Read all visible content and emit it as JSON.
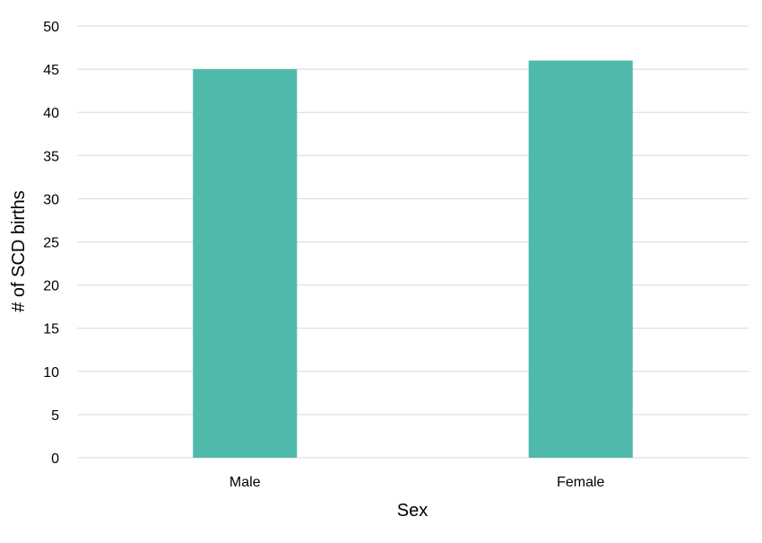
{
  "chart_data": {
    "type": "bar",
    "title": "",
    "xlabel": "Sex",
    "ylabel": "# of SCD births",
    "categories": [
      "Male",
      "Female"
    ],
    "values": [
      45,
      46
    ],
    "ylim": [
      0,
      50
    ],
    "ytick_step": 5,
    "grid": true,
    "legend": "none",
    "bar_color": "#4fbaa9"
  }
}
